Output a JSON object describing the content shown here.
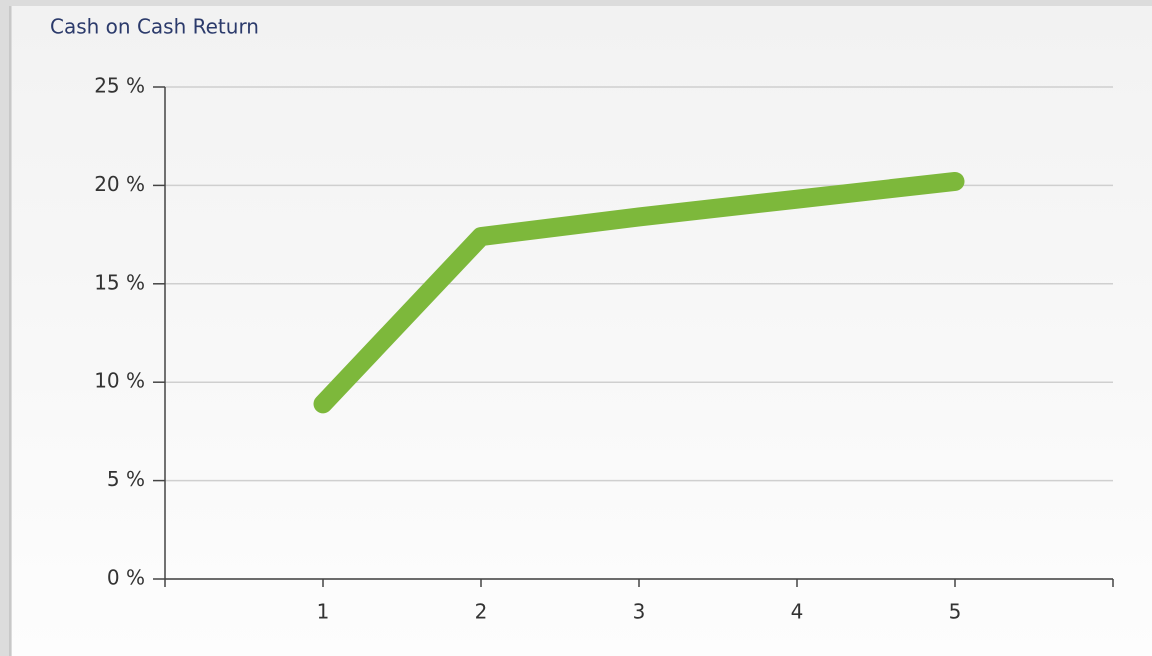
{
  "chart_data": {
    "type": "line",
    "title": "Cash on Cash Return",
    "x": [
      1,
      2,
      3,
      4,
      5
    ],
    "series": [
      {
        "name": null,
        "color": "#7db83b",
        "values": [
          8.9,
          17.4,
          18.4,
          19.3,
          20.2
        ]
      }
    ],
    "xlim": [
      0,
      6
    ],
    "xticks": [
      1,
      2,
      3,
      4,
      5
    ],
    "ylim": [
      0,
      25
    ],
    "yticks": [
      {
        "value": 0,
        "label": "0 %"
      },
      {
        "value": 5,
        "label": "5 %"
      },
      {
        "value": 10,
        "label": "10 %"
      },
      {
        "value": 15,
        "label": "15 %"
      },
      {
        "value": 20,
        "label": "20 %"
      },
      {
        "value": 25,
        "label": "25 %"
      }
    ],
    "grid": true
  }
}
